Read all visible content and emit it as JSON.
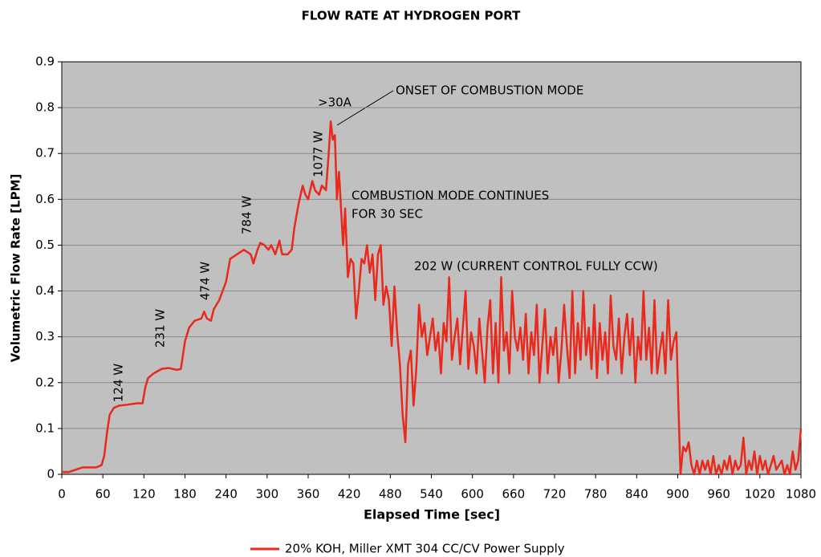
{
  "chart_data": {
    "type": "line",
    "title": "FLOW RATE AT HYDROGEN PORT",
    "x_label": "Elapsed Time [sec]",
    "y_label": "Volumetric Flow Rate [LPM]",
    "annotations": [
      ">30A",
      "ONSET OF COMBUSTION MODE",
      "COMBUSTION MODE CONTINUES",
      "FOR 30 SEC",
      "202 W (CURRENT CONTROL FULLY CCW)",
      "124 W",
      "231 W",
      "474 W",
      "784 W",
      "1077 W"
    ],
    "xlim": [
      0,
      1080
    ],
    "xticks": [
      0,
      60,
      120,
      180,
      240,
      300,
      360,
      420,
      480,
      540,
      600,
      660,
      720,
      780,
      840,
      900,
      960,
      1020,
      1080
    ],
    "ylim": [
      0,
      0.9
    ],
    "yticks": [
      0,
      0.1,
      0.2,
      0.3,
      0.4,
      0.5,
      0.6,
      0.7,
      0.8,
      0.9
    ],
    "grid": true,
    "legend": "bottom",
    "x": [
      0,
      10,
      20,
      30,
      40,
      50,
      58,
      62,
      66,
      70,
      76,
      84,
      96,
      110,
      118,
      122,
      126,
      134,
      146,
      156,
      168,
      174,
      180,
      186,
      194,
      204,
      208,
      212,
      218,
      222,
      230,
      240,
      246,
      256,
      266,
      276,
      280,
      286,
      290,
      296,
      302,
      306,
      312,
      318,
      322,
      330,
      336,
      340,
      346,
      352,
      356,
      360,
      366,
      370,
      376,
      380,
      386,
      390,
      393,
      396,
      399,
      402,
      405,
      408,
      411,
      414,
      418,
      422,
      426,
      430,
      434,
      438,
      442,
      446,
      450,
      454,
      458,
      462,
      466,
      470,
      474,
      478,
      482,
      486,
      490,
      494,
      498,
      502,
      506,
      510,
      514,
      518,
      522,
      526,
      530,
      534,
      538,
      542,
      546,
      550,
      554,
      558,
      562,
      566,
      570,
      574,
      578,
      582,
      586,
      590,
      594,
      598,
      602,
      606,
      610,
      614,
      618,
      622,
      626,
      630,
      634,
      638,
      642,
      646,
      650,
      654,
      658,
      662,
      666,
      670,
      674,
      678,
      682,
      686,
      690,
      694,
      698,
      702,
      706,
      710,
      714,
      718,
      722,
      726,
      730,
      734,
      738,
      742,
      746,
      750,
      754,
      758,
      762,
      766,
      770,
      774,
      778,
      782,
      786,
      790,
      794,
      798,
      802,
      806,
      810,
      814,
      818,
      822,
      826,
      830,
      834,
      838,
      842,
      846,
      850,
      854,
      858,
      862,
      866,
      870,
      874,
      878,
      882,
      886,
      890,
      894,
      898,
      901,
      904,
      908,
      912,
      916,
      920,
      924,
      928,
      932,
      936,
      940,
      944,
      948,
      952,
      956,
      960,
      964,
      968,
      972,
      976,
      980,
      984,
      988,
      992,
      996,
      1000,
      1004,
      1008,
      1012,
      1016,
      1020,
      1024,
      1028,
      1032,
      1036,
      1040,
      1044,
      1048,
      1052,
      1056,
      1060,
      1064,
      1068,
      1072,
      1076,
      1080
    ],
    "series": [
      {
        "name": "20% KOH, Miller XMT 304 CC/CV Power Supply",
        "color": "#e8291c",
        "values": [
          0.005,
          0.005,
          0.01,
          0.015,
          0.015,
          0.015,
          0.02,
          0.04,
          0.09,
          0.13,
          0.145,
          0.15,
          0.152,
          0.155,
          0.155,
          0.19,
          0.21,
          0.22,
          0.23,
          0.232,
          0.228,
          0.23,
          0.29,
          0.32,
          0.335,
          0.34,
          0.355,
          0.34,
          0.335,
          0.36,
          0.38,
          0.42,
          0.47,
          0.48,
          0.49,
          0.48,
          0.46,
          0.49,
          0.505,
          0.5,
          0.49,
          0.5,
          0.48,
          0.51,
          0.48,
          0.48,
          0.49,
          0.54,
          0.59,
          0.63,
          0.61,
          0.6,
          0.64,
          0.62,
          0.61,
          0.63,
          0.62,
          0.7,
          0.77,
          0.73,
          0.74,
          0.6,
          0.66,
          0.58,
          0.5,
          0.58,
          0.43,
          0.47,
          0.46,
          0.34,
          0.4,
          0.47,
          0.46,
          0.5,
          0.44,
          0.48,
          0.38,
          0.48,
          0.5,
          0.37,
          0.41,
          0.38,
          0.28,
          0.41,
          0.31,
          0.24,
          0.13,
          0.07,
          0.24,
          0.27,
          0.15,
          0.23,
          0.37,
          0.3,
          0.33,
          0.26,
          0.3,
          0.34,
          0.27,
          0.31,
          0.22,
          0.33,
          0.29,
          0.43,
          0.25,
          0.3,
          0.34,
          0.24,
          0.32,
          0.4,
          0.23,
          0.31,
          0.28,
          0.22,
          0.34,
          0.27,
          0.2,
          0.32,
          0.38,
          0.22,
          0.33,
          0.2,
          0.43,
          0.27,
          0.31,
          0.22,
          0.4,
          0.3,
          0.27,
          0.32,
          0.25,
          0.35,
          0.22,
          0.31,
          0.26,
          0.37,
          0.2,
          0.28,
          0.36,
          0.22,
          0.3,
          0.26,
          0.32,
          0.2,
          0.27,
          0.37,
          0.28,
          0.21,
          0.4,
          0.22,
          0.33,
          0.25,
          0.4,
          0.26,
          0.32,
          0.23,
          0.37,
          0.21,
          0.33,
          0.25,
          0.31,
          0.22,
          0.39,
          0.28,
          0.25,
          0.34,
          0.22,
          0.3,
          0.35,
          0.26,
          0.34,
          0.2,
          0.3,
          0.25,
          0.4,
          0.25,
          0.32,
          0.22,
          0.38,
          0.22,
          0.27,
          0.31,
          0.22,
          0.38,
          0.25,
          0.29,
          0.31,
          0.15,
          0,
          0.06,
          0.05,
          0.07,
          0.02,
          0,
          0.03,
          0,
          0.03,
          0.01,
          0.03,
          0,
          0.04,
          0,
          0.02,
          0,
          0.03,
          0.01,
          0.04,
          0,
          0.03,
          0.01,
          0.02,
          0.08,
          0,
          0.03,
          0.01,
          0.05,
          0,
          0.04,
          0.01,
          0.03,
          0,
          0.02,
          0.04,
          0.01,
          0.02,
          0.03,
          0,
          0.02,
          0,
          0.05,
          0.01,
          0.03,
          0.1
        ]
      }
    ]
  }
}
